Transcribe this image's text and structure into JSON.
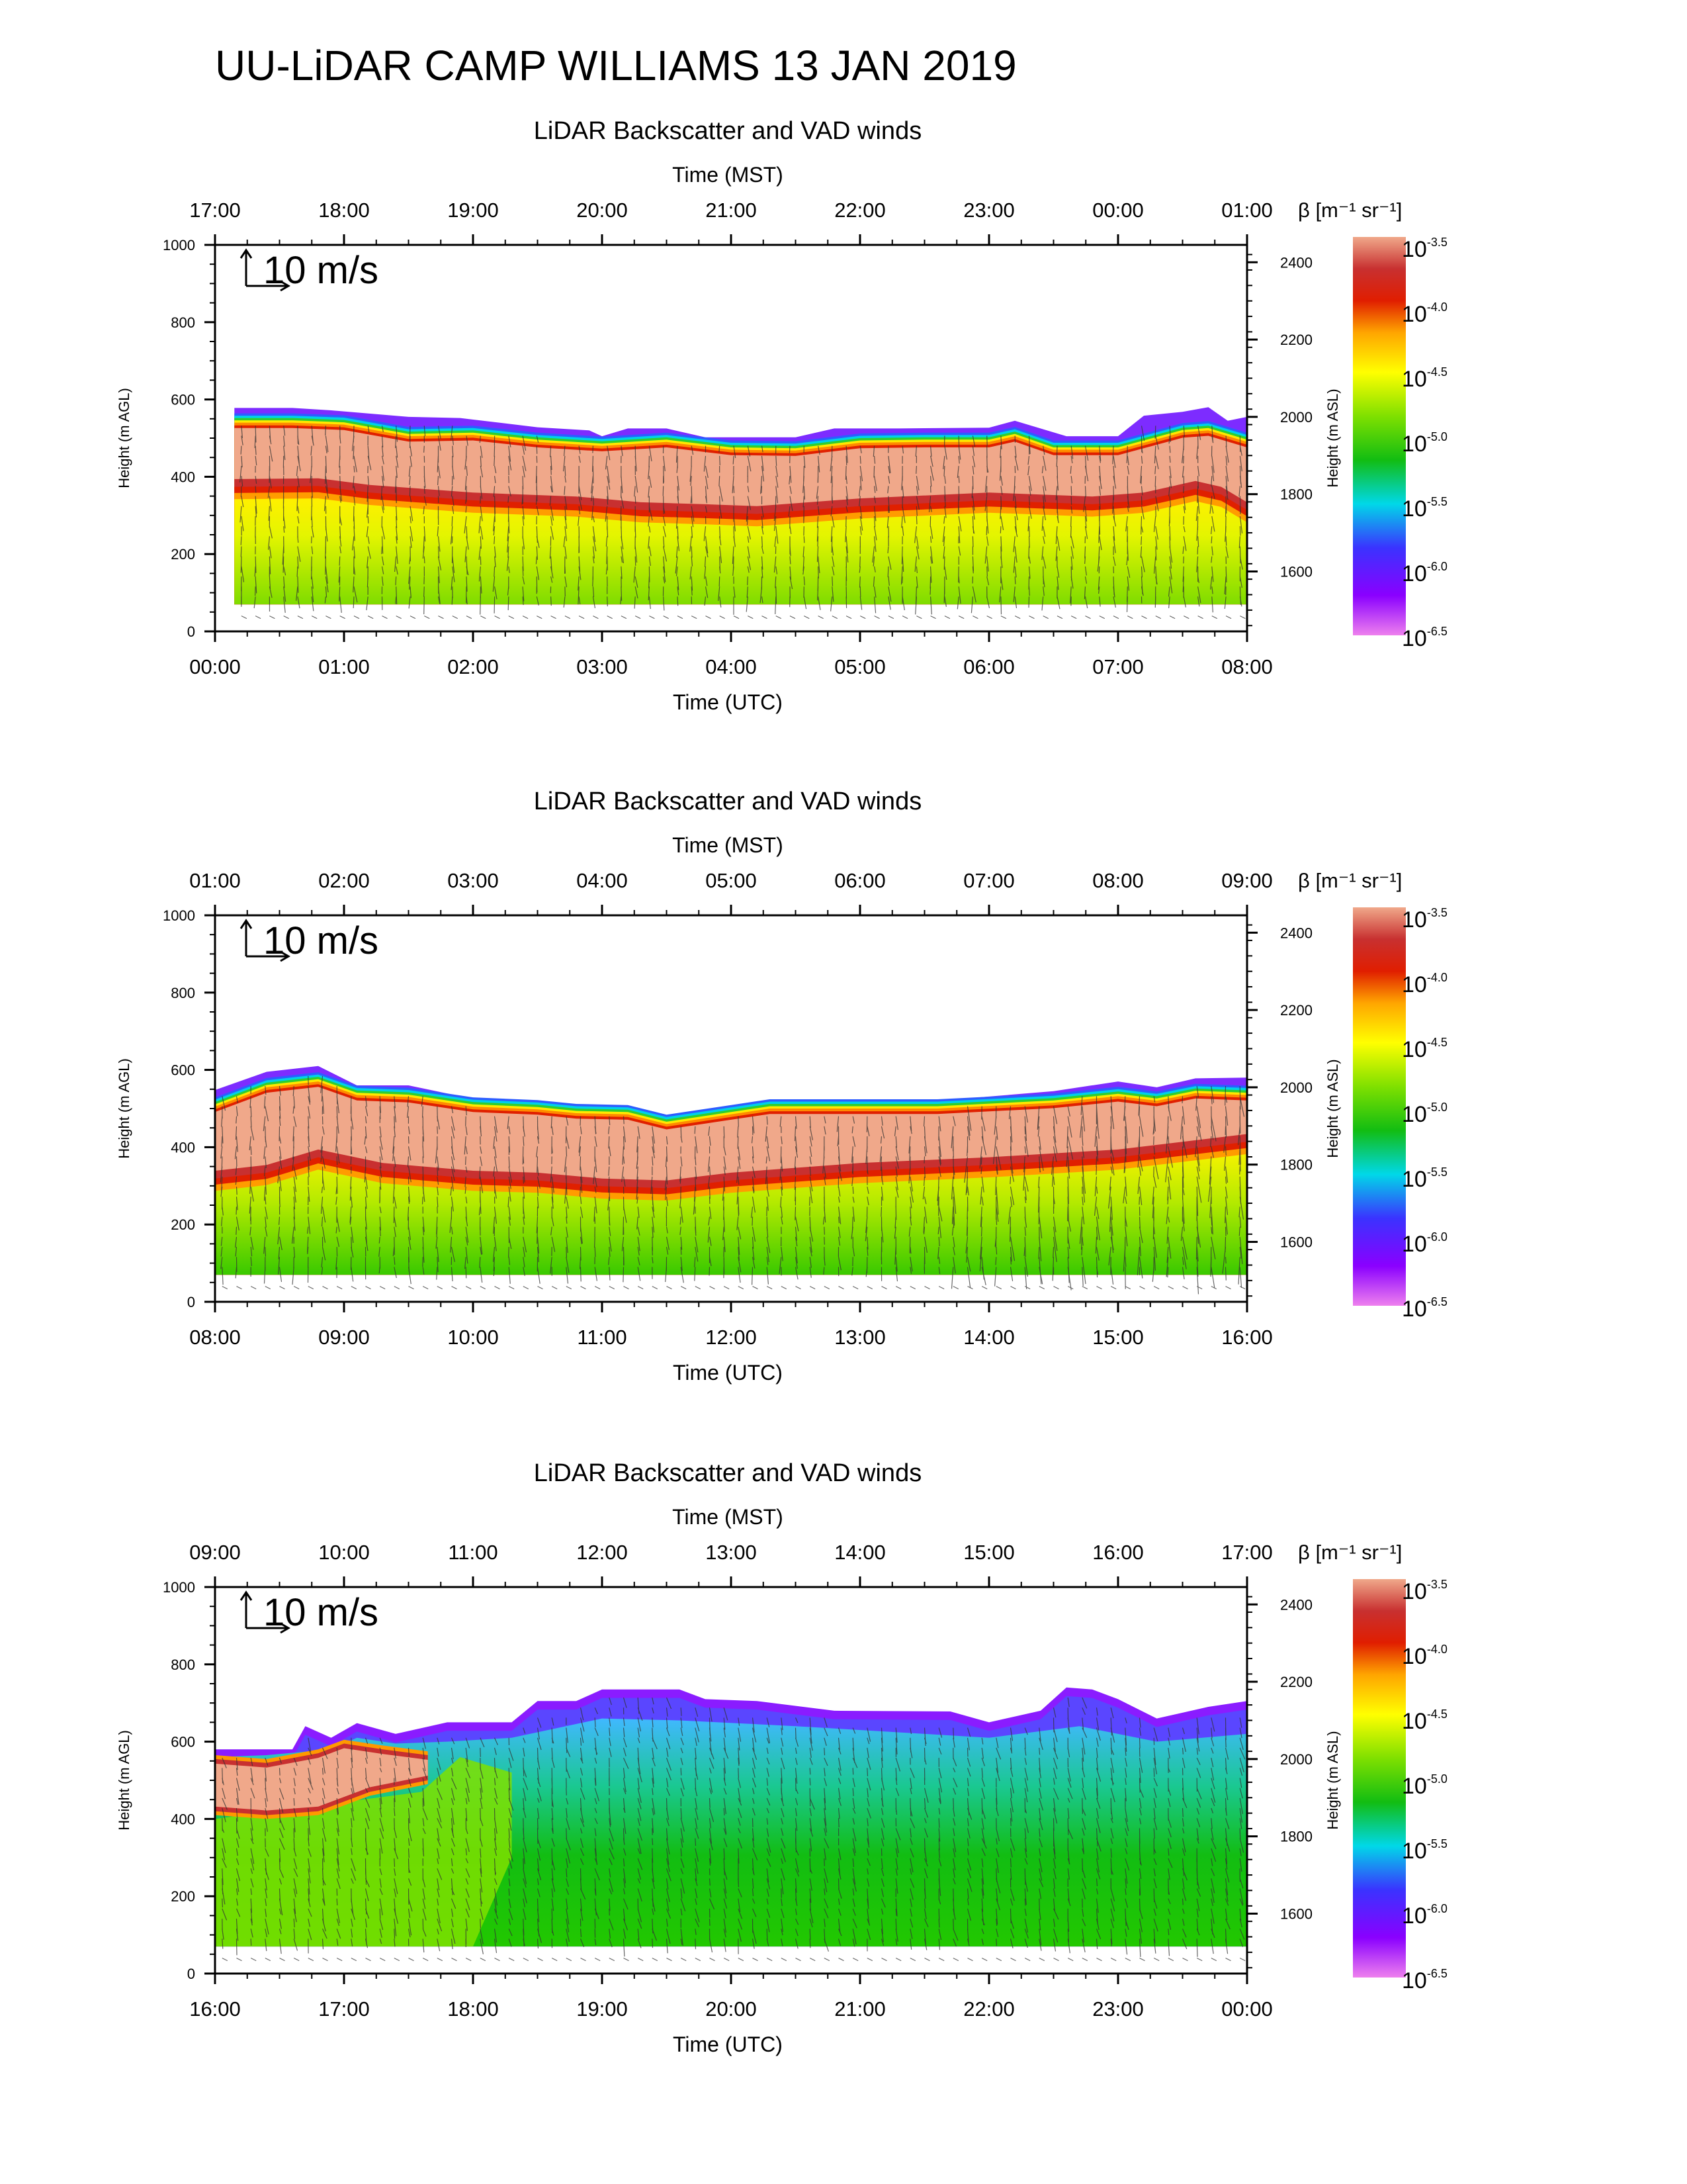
{
  "figure": {
    "title": "UU-LiDAR CAMP WILLIAMS 13 JAN 2019",
    "colors": {
      "scale": [
        "#ee80ee",
        "#8a00ff",
        "#3a33ff",
        "#00d8e8",
        "#12bd12",
        "#7fe000",
        "#ffff00",
        "#ffa500",
        "#e01e00",
        "#c83030",
        "#f0a88a"
      ]
    }
  },
  "chart_data": [
    {
      "type": "heatmap",
      "title": "LiDAR Backscatter and VAD winds",
      "x_top_label": "Time (MST)",
      "x_top_ticks": [
        "17:00",
        "18:00",
        "19:00",
        "20:00",
        "21:00",
        "22:00",
        "23:00",
        "00:00",
        "01:00"
      ],
      "xlabel": "Time (UTC)",
      "x_ticks": [
        "00:00",
        "01:00",
        "02:00",
        "03:00",
        "04:00",
        "05:00",
        "06:00",
        "07:00",
        "08:00"
      ],
      "xlim_hours_utc": [
        0,
        8
      ],
      "ylabel": "Height (m AGL)",
      "ylim": [
        0,
        1000
      ],
      "y_ticks": [
        "0",
        "200",
        "400",
        "600",
        "800",
        "1000"
      ],
      "y2label": "Height (m ASL)",
      "y2_ticks": [
        "1600",
        "1800",
        "2000",
        "2200",
        "2400"
      ],
      "y2_values": [
        1600,
        1800,
        2000,
        2200,
        2400
      ],
      "asl_offset_m": 1445,
      "wind_scale_label": "10 m/s",
      "colorbar": {
        "label": "β [m⁻¹ sr⁻¹]",
        "base": "10",
        "exponents": [
          "-3.5",
          "-4.0",
          "-4.5",
          "-5.0",
          "-5.5",
          "-6.0",
          "-6.5"
        ]
      },
      "lowest_range_gate_m": 70,
      "aerosol_top_m": [
        [
          0.15,
          578
        ],
        [
          0.6,
          578
        ],
        [
          0.9,
          572
        ],
        [
          1.5,
          555
        ],
        [
          1.9,
          552
        ],
        [
          2.5,
          528
        ],
        [
          2.9,
          520
        ],
        [
          3.0,
          505
        ],
        [
          3.2,
          525
        ],
        [
          3.5,
          525
        ],
        [
          3.8,
          502
        ],
        [
          4.5,
          502
        ],
        [
          4.8,
          525
        ],
        [
          5.3,
          525
        ],
        [
          6.0,
          527
        ],
        [
          6.2,
          545
        ],
        [
          6.6,
          505
        ],
        [
          7.0,
          505
        ],
        [
          7.2,
          558
        ],
        [
          7.5,
          568
        ],
        [
          7.7,
          580
        ],
        [
          7.85,
          545
        ],
        [
          8.0,
          555
        ]
      ],
      "backscatter_top_m": [
        [
          0.15,
          540
        ],
        [
          0.6,
          540
        ],
        [
          1.0,
          535
        ],
        [
          1.5,
          505
        ],
        [
          2.0,
          508
        ],
        [
          2.5,
          490
        ],
        [
          3.0,
          480
        ],
        [
          3.5,
          490
        ],
        [
          4.0,
          470
        ],
        [
          4.5,
          468
        ],
        [
          5.0,
          488
        ],
        [
          5.5,
          490
        ],
        [
          6.0,
          490
        ],
        [
          6.2,
          505
        ],
        [
          6.5,
          470
        ],
        [
          7.0,
          470
        ],
        [
          7.5,
          515
        ],
        [
          7.7,
          520
        ],
        [
          8.0,
          490
        ]
      ],
      "upper_layer_base_m": [
        [
          0.15,
          380
        ],
        [
          0.8,
          382
        ],
        [
          1.2,
          365
        ],
        [
          2.0,
          345
        ],
        [
          2.8,
          335
        ],
        [
          3.3,
          320
        ],
        [
          3.8,
          315
        ],
        [
          4.2,
          310
        ],
        [
          5.0,
          330
        ],
        [
          6.0,
          345
        ],
        [
          6.8,
          335
        ],
        [
          7.2,
          345
        ],
        [
          7.6,
          375
        ],
        [
          7.8,
          360
        ],
        [
          8.0,
          320
        ]
      ]
    },
    {
      "type": "heatmap",
      "title": "LiDAR Backscatter and VAD winds",
      "x_top_label": "Time (MST)",
      "x_top_ticks": [
        "01:00",
        "02:00",
        "03:00",
        "04:00",
        "05:00",
        "06:00",
        "07:00",
        "08:00",
        "09:00"
      ],
      "xlabel": "Time (UTC)",
      "x_ticks": [
        "08:00",
        "09:00",
        "10:00",
        "11:00",
        "12:00",
        "13:00",
        "14:00",
        "15:00",
        "16:00"
      ],
      "xlim_hours_utc": [
        8,
        16
      ],
      "ylabel": "Height (m AGL)",
      "ylim": [
        0,
        1000
      ],
      "y_ticks": [
        "0",
        "200",
        "400",
        "600",
        "800",
        "1000"
      ],
      "y2label": "Height (m ASL)",
      "y2_ticks": [
        "1600",
        "1800",
        "2000",
        "2200",
        "2400"
      ],
      "y2_values": [
        1600,
        1800,
        2000,
        2200,
        2400
      ],
      "asl_offset_m": 1445,
      "wind_scale_label": "10 m/s",
      "colorbar": {
        "label": "β [m⁻¹ sr⁻¹]",
        "base": "10",
        "exponents": [
          "-3.5",
          "-4.0",
          "-4.5",
          "-5.0",
          "-5.5",
          "-6.0",
          "-6.5"
        ]
      },
      "lowest_range_gate_m": 70,
      "aerosol_top_m": [
        [
          8.0,
          548
        ],
        [
          8.4,
          595
        ],
        [
          8.8,
          610
        ],
        [
          9.1,
          560
        ],
        [
          9.5,
          560
        ],
        [
          10.0,
          525
        ],
        [
          10.5,
          520
        ],
        [
          10.8,
          505
        ],
        [
          11.2,
          500
        ],
        [
          11.5,
          470
        ],
        [
          12.0,
          500
        ],
        [
          12.3,
          520
        ],
        [
          13.0,
          520
        ],
        [
          13.6,
          520
        ],
        [
          14.5,
          545
        ],
        [
          15.0,
          570
        ],
        [
          15.3,
          555
        ],
        [
          15.6,
          578
        ],
        [
          16.0,
          580
        ]
      ],
      "backscatter_top_m": [
        [
          8.0,
          505
        ],
        [
          8.4,
          555
        ],
        [
          8.8,
          570
        ],
        [
          9.1,
          535
        ],
        [
          9.5,
          530
        ],
        [
          10.0,
          505
        ],
        [
          10.5,
          498
        ],
        [
          10.8,
          488
        ],
        [
          11.2,
          485
        ],
        [
          11.5,
          460
        ],
        [
          12.0,
          485
        ],
        [
          12.3,
          500
        ],
        [
          13.0,
          500
        ],
        [
          13.6,
          500
        ],
        [
          14.5,
          515
        ],
        [
          15.0,
          532
        ],
        [
          15.3,
          520
        ],
        [
          15.6,
          540
        ],
        [
          16.0,
          535
        ]
      ],
      "upper_layer_base_m": [
        [
          8.0,
          325
        ],
        [
          8.4,
          340
        ],
        [
          8.8,
          380
        ],
        [
          9.3,
          345
        ],
        [
          10.0,
          325
        ],
        [
          10.5,
          320
        ],
        [
          11.0,
          305
        ],
        [
          11.5,
          300
        ],
        [
          12.0,
          320
        ],
        [
          13.0,
          345
        ],
        [
          14.0,
          360
        ],
        [
          15.0,
          380
        ],
        [
          16.0,
          420
        ]
      ]
    },
    {
      "type": "heatmap",
      "title": "LiDAR Backscatter and VAD winds",
      "x_top_label": "Time (MST)",
      "x_top_ticks": [
        "09:00",
        "10:00",
        "11:00",
        "12:00",
        "13:00",
        "14:00",
        "15:00",
        "16:00",
        "17:00"
      ],
      "xlabel": "Time (UTC)",
      "x_ticks": [
        "16:00",
        "17:00",
        "18:00",
        "19:00",
        "20:00",
        "21:00",
        "22:00",
        "23:00",
        "00:00"
      ],
      "xlim_hours_utc": [
        16,
        24
      ],
      "ylabel": "Height (m AGL)",
      "ylim": [
        0,
        1000
      ],
      "y_ticks": [
        "0",
        "200",
        "400",
        "600",
        "800",
        "1000"
      ],
      "y2label": "Height (m ASL)",
      "y2_ticks": [
        "1600",
        "1800",
        "2000",
        "2200",
        "2400"
      ],
      "y2_values": [
        1600,
        1800,
        2000,
        2200,
        2400
      ],
      "asl_offset_m": 1445,
      "wind_scale_label": "10 m/s",
      "colorbar": {
        "label": "β [m⁻¹ sr⁻¹]",
        "base": "10",
        "exponents": [
          "-3.5",
          "-4.0",
          "-4.5",
          "-5.0",
          "-5.5",
          "-6.0",
          "-6.5"
        ]
      },
      "lowest_range_gate_m": 70,
      "aerosol_top_m": [
        [
          16.0,
          580
        ],
        [
          16.6,
          580
        ],
        [
          16.7,
          640
        ],
        [
          16.9,
          610
        ],
        [
          17.1,
          648
        ],
        [
          17.4,
          620
        ],
        [
          17.8,
          650
        ],
        [
          18.3,
          650
        ],
        [
          18.5,
          705
        ],
        [
          18.8,
          705
        ],
        [
          19.0,
          735
        ],
        [
          19.6,
          735
        ],
        [
          19.8,
          710
        ],
        [
          20.2,
          705
        ],
        [
          20.8,
          680
        ],
        [
          21.7,
          678
        ],
        [
          22.0,
          650
        ],
        [
          22.4,
          680
        ],
        [
          22.6,
          740
        ],
        [
          22.8,
          735
        ],
        [
          23.0,
          710
        ],
        [
          23.3,
          660
        ],
        [
          23.7,
          690
        ],
        [
          24.0,
          705
        ]
      ],
      "low_aerosol_top_m": [
        [
          16.0,
          560
        ],
        [
          16.4,
          565
        ],
        [
          16.9,
          580
        ],
        [
          17.1,
          610
        ],
        [
          17.4,
          595
        ],
        [
          17.8,
          600
        ],
        [
          18.3,
          610
        ],
        [
          19.0,
          660
        ],
        [
          19.6,
          655
        ],
        [
          20.5,
          640
        ],
        [
          21.5,
          620
        ],
        [
          22.0,
          610
        ],
        [
          22.7,
          640
        ],
        [
          23.3,
          600
        ],
        [
          24.0,
          620
        ]
      ],
      "elevated_layer": {
        "top_m": [
          [
            16.0,
            555
          ],
          [
            16.4,
            545
          ],
          [
            16.8,
            570
          ],
          [
            17.0,
            595
          ],
          [
            17.3,
            580
          ],
          [
            17.65,
            565
          ]
        ],
        "base_m": [
          [
            16.0,
            420
          ],
          [
            16.4,
            410
          ],
          [
            16.8,
            420
          ],
          [
            17.2,
            470
          ],
          [
            17.65,
            500
          ]
        ]
      },
      "upper_layer_base_m": []
    }
  ]
}
